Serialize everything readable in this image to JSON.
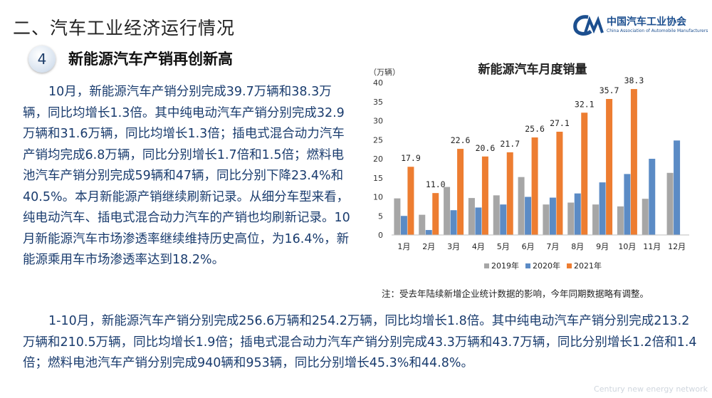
{
  "header": {
    "section_title": "二、汽车工业经济运行情况",
    "logo_cn": "中国汽车工业协会",
    "logo_en": "China Association of Automobile Manufacturers"
  },
  "subheader": {
    "number": "4",
    "title": "新能源汽车产销再创新高"
  },
  "body": {
    "paragraph1": "10月，新能源汽车产销分别完成39.7万辆和38.3万辆，同比均增长1.3倍。其中纯电动汽车产销分别完成32.9万辆和31.6万辆，同比均增长1.3倍；插电式混合动力汽车产销均完成6.8万辆，同比分别增长1.7倍和1.5倍；燃料电池汽车产销分别完成59辆和47辆，同比分别下降23.4%和40.5%。本月新能源产销继续刷新记录。从细分车型来看，纯电动汽车、插电式混合动力汽车的产销也均刷新记录。10月新能源汽车市场渗透率继续维持历史高位，为16.4%，新能源乘用车市场渗透率达到18.2%。",
    "paragraph2": "1-10月，新能源汽车产销分别完成256.6万辆和254.2万辆，同比均增长1.8倍。其中纯电动汽车产销分别完成213.2万辆和210.5万辆，同比均增长1.9倍；插电式混合动力汽车产销分别完成43.3万辆和43.7万辆，同比分别增长1.2倍和1.4倍；燃料电池汽车产销分别完成940辆和953辆，同比分别增长45.3%和44.8%。",
    "note": "注：受去年陆续新增企业统计数据的影响，今年同期数据略有调整。"
  },
  "chart_data": {
    "type": "bar",
    "title": "新能源汽车月度销量",
    "ylabel": "（万辆）",
    "ylim": [
      0,
      40
    ],
    "yticks": [
      0,
      5,
      10,
      15,
      20,
      25,
      30,
      35,
      40
    ],
    "categories": [
      "1月",
      "2月",
      "3月",
      "4月",
      "5月",
      "6月",
      "7月",
      "8月",
      "9月",
      "10月",
      "11月",
      "12月"
    ],
    "series": [
      {
        "name": "2019年",
        "color": "#a6a6a6",
        "values": [
          9.6,
          5.3,
          12.6,
          9.7,
          10.4,
          15.2,
          8.0,
          8.5,
          8.0,
          7.5,
          9.5,
          16.3
        ]
      },
      {
        "name": "2020年",
        "color": "#5b8bc5",
        "values": [
          5.0,
          1.3,
          6.5,
          7.2,
          8.0,
          10.0,
          9.8,
          10.9,
          13.8,
          16.0,
          20.0,
          24.8
        ]
      },
      {
        "name": "2021年",
        "color": "#ed7d31",
        "values": [
          17.9,
          11.0,
          22.6,
          20.6,
          21.7,
          25.6,
          27.1,
          32.1,
          35.7,
          38.3,
          null,
          null
        ],
        "labels": [
          "17.9",
          "11.0",
          "22.6",
          "20.6",
          "21.7",
          "25.6",
          "27.1",
          "32.1",
          "35.7",
          "38.3",
          "",
          ""
        ]
      }
    ],
    "legend": "bottom",
    "grid": false
  },
  "watermark": "Century new energy network"
}
